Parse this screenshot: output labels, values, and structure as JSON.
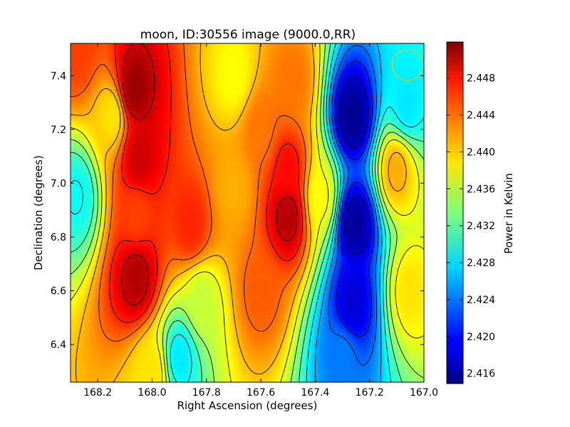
{
  "chart_data": {
    "type": "heatmap",
    "title": "moon, ID:30556 image (9000.0,RR)",
    "xlabel": "Right Ascension (degrees)",
    "ylabel": "Declination (degrees)",
    "colorbar_label": "Power in Kelvin",
    "colormap": "jet",
    "xlim": [
      168.3,
      167.0
    ],
    "ylim": [
      6.26,
      7.52
    ],
    "x_ticks": [
      168.2,
      168.0,
      167.8,
      167.6,
      167.4,
      167.2,
      167.0
    ],
    "x_tick_labels": [
      "168.2",
      "168.0",
      "167.8",
      "167.6",
      "167.4",
      "167.2",
      "167.0"
    ],
    "y_ticks": [
      6.4,
      6.6,
      6.8,
      7.0,
      7.2,
      7.4
    ],
    "y_tick_labels": [
      "6.4",
      "6.6",
      "6.8",
      "7.0",
      "7.2",
      "7.4"
    ],
    "value_range": [
      2.4149,
      2.4519
    ],
    "colorbar_ticks": [
      2.416,
      2.42,
      2.424,
      2.428,
      2.432,
      2.436,
      2.44,
      2.444,
      2.448
    ],
    "colorbar_tick_labels": [
      "2.416",
      "2.420",
      "2.424",
      "2.428",
      "2.432",
      "2.436",
      "2.440",
      "2.444",
      "2.448"
    ],
    "contours": "black, about 12 levels",
    "beam_marker": {
      "ra": 167.06,
      "dec": 7.44,
      "color": "#c8c832"
    },
    "features": [
      {
        "ra": 168.07,
        "dec": 7.35,
        "value": 2.451
      },
      {
        "ra": 168.05,
        "dec": 7.1,
        "value": 2.449
      },
      {
        "ra": 168.06,
        "dec": 6.65,
        "value": 2.45
      },
      {
        "ra": 168.06,
        "dec": 6.88,
        "value": 2.445
      },
      {
        "ra": 167.5,
        "dec": 6.88,
        "value": 2.45
      },
      {
        "ra": 167.5,
        "dec": 7.05,
        "value": 2.447
      },
      {
        "ra": 167.48,
        "dec": 7.38,
        "value": 2.443
      },
      {
        "ra": 167.86,
        "dec": 6.85,
        "value": 2.446
      },
      {
        "ra": 167.7,
        "dec": 6.98,
        "value": 2.441
      },
      {
        "ra": 167.6,
        "dec": 6.6,
        "value": 2.444
      },
      {
        "ra": 167.26,
        "dec": 7.25,
        "value": 2.4155
      },
      {
        "ra": 167.25,
        "dec": 6.85,
        "value": 2.416
      },
      {
        "ra": 167.26,
        "dec": 6.55,
        "value": 2.418
      },
      {
        "ra": 167.3,
        "dec": 6.35,
        "value": 2.424
      },
      {
        "ra": 167.1,
        "dec": 7.05,
        "value": 2.441
      },
      {
        "ra": 167.05,
        "dec": 6.6,
        "value": 2.439
      },
      {
        "ra": 168.28,
        "dec": 7.5,
        "value": 2.445
      },
      {
        "ra": 168.0,
        "dec": 6.3,
        "value": 2.439
      },
      {
        "ra": 168.28,
        "dec": 6.95,
        "value": 2.429
      },
      {
        "ra": 167.9,
        "dec": 6.35,
        "value": 2.428
      },
      {
        "ra": 167.06,
        "dec": 7.3,
        "value": 2.428
      },
      {
        "ra": 168.15,
        "dec": 7.25,
        "value": 2.439
      },
      {
        "ra": 167.7,
        "dec": 7.4,
        "value": 2.438
      },
      {
        "ra": 167.6,
        "dec": 7.2,
        "value": 2.443
      },
      {
        "ra": 167.38,
        "dec": 6.95,
        "value": 2.438
      },
      {
        "ra": 167.82,
        "dec": 6.55,
        "value": 2.436
      }
    ]
  }
}
